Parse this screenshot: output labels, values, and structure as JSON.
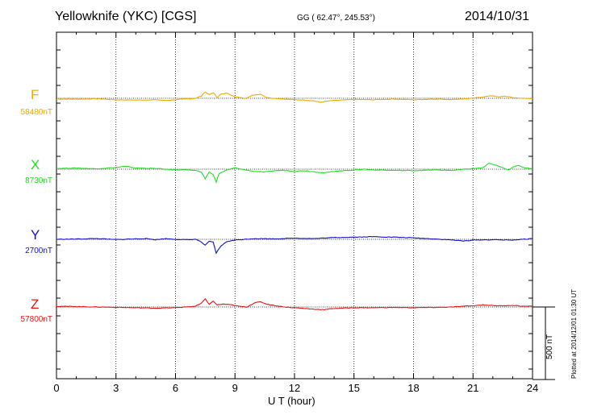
{
  "header": {
    "station": "Yellowknife (YKC)  [CGS]",
    "coords": "GG ( 62.47°, 245.53°)",
    "date": "2014/10/31"
  },
  "plotted_note": "Plotted at 2014/12/01 01:30 UT",
  "chart_data": {
    "type": "line",
    "xlabel": "U T (hour)",
    "xlim": [
      0,
      24
    ],
    "xticks": [
      "0",
      "3",
      "6",
      "9",
      "12",
      "15",
      "18",
      "21",
      "24"
    ],
    "grid": "vertical dotted every 3 hours",
    "scale_bar": {
      "label": "500 nT",
      "value_nT": 500
    },
    "series": [
      {
        "name": "F",
        "baseline_label": "58480nT",
        "color": "#f4a800",
        "points": [
          [
            0,
            -5
          ],
          [
            1,
            -6
          ],
          [
            2,
            -3
          ],
          [
            3,
            -10
          ],
          [
            4,
            -12
          ],
          [
            5,
            -10
          ],
          [
            5.5,
            -15
          ],
          [
            6,
            -10
          ],
          [
            6.5,
            -5
          ],
          [
            7,
            0
          ],
          [
            7.3,
            15
          ],
          [
            7.5,
            45
          ],
          [
            7.7,
            25
          ],
          [
            7.9,
            40
          ],
          [
            8.1,
            5
          ],
          [
            8.3,
            30
          ],
          [
            8.6,
            35
          ],
          [
            9,
            10
          ],
          [
            9.5,
            0
          ],
          [
            10,
            25
          ],
          [
            10.3,
            28
          ],
          [
            10.6,
            5
          ],
          [
            11,
            0
          ],
          [
            11.5,
            -5
          ],
          [
            12,
            -10
          ],
          [
            12.5,
            -12
          ],
          [
            13,
            -18
          ],
          [
            13.3,
            -28
          ],
          [
            13.6,
            -20
          ],
          [
            14,
            -15
          ],
          [
            15,
            -8
          ],
          [
            16,
            -10
          ],
          [
            17,
            -5
          ],
          [
            18,
            -10
          ],
          [
            19,
            -5
          ],
          [
            20,
            -8
          ],
          [
            21,
            0
          ],
          [
            21.5,
            10
          ],
          [
            22,
            18
          ],
          [
            22.3,
            8
          ],
          [
            22.6,
            15
          ],
          [
            23,
            5
          ],
          [
            23.5,
            0
          ],
          [
            24,
            -2
          ]
        ]
      },
      {
        "name": "X",
        "baseline_label": "8730nT",
        "color": "#22dd22",
        "points": [
          [
            0,
            5
          ],
          [
            1,
            8
          ],
          [
            2,
            3
          ],
          [
            3,
            12
          ],
          [
            3.5,
            20
          ],
          [
            4,
            8
          ],
          [
            5,
            5
          ],
          [
            6,
            -5
          ],
          [
            6.5,
            -3
          ],
          [
            7,
            -10
          ],
          [
            7.3,
            -20
          ],
          [
            7.5,
            -65
          ],
          [
            7.7,
            -20
          ],
          [
            7.9,
            -35
          ],
          [
            8.05,
            -90
          ],
          [
            8.2,
            -30
          ],
          [
            8.5,
            -10
          ],
          [
            9,
            10
          ],
          [
            9.5,
            -5
          ],
          [
            10,
            -15
          ],
          [
            10.5,
            -20
          ],
          [
            11,
            -10
          ],
          [
            11.5,
            -8
          ],
          [
            12,
            -15
          ],
          [
            12.5,
            -10
          ],
          [
            13,
            -18
          ],
          [
            13.5,
            -25
          ],
          [
            14,
            -15
          ],
          [
            15,
            -5
          ],
          [
            15.5,
            0
          ],
          [
            16,
            -5
          ],
          [
            17,
            -8
          ],
          [
            18,
            -10
          ],
          [
            19,
            -5
          ],
          [
            20,
            -8
          ],
          [
            21,
            5
          ],
          [
            21.5,
            10
          ],
          [
            21.8,
            40
          ],
          [
            22.2,
            25
          ],
          [
            22.5,
            10
          ],
          [
            22.8,
            -5
          ],
          [
            23,
            15
          ],
          [
            23.3,
            25
          ],
          [
            23.6,
            10
          ],
          [
            24,
            5
          ]
        ]
      },
      {
        "name": "Y",
        "baseline_label": "2700nT",
        "color": "#1010cc",
        "points": [
          [
            0,
            0
          ],
          [
            1,
            2
          ],
          [
            2,
            5
          ],
          [
            3,
            -2
          ],
          [
            4,
            3
          ],
          [
            4.5,
            5
          ],
          [
            5,
            -3
          ],
          [
            5.5,
            5
          ],
          [
            6,
            0
          ],
          [
            6.5,
            -3
          ],
          [
            7,
            0
          ],
          [
            7.2,
            -10
          ],
          [
            7.5,
            -40
          ],
          [
            7.7,
            -15
          ],
          [
            7.9,
            -20
          ],
          [
            8.05,
            -95
          ],
          [
            8.3,
            -45
          ],
          [
            8.6,
            -15
          ],
          [
            9,
            -5
          ],
          [
            10,
            5
          ],
          [
            11,
            3
          ],
          [
            12,
            8
          ],
          [
            13,
            5
          ],
          [
            14,
            12
          ],
          [
            15,
            15
          ],
          [
            16,
            18
          ],
          [
            17,
            15
          ],
          [
            18,
            10
          ],
          [
            19,
            3
          ],
          [
            20,
            -5
          ],
          [
            20.5,
            -12
          ],
          [
            21,
            -5
          ],
          [
            22,
            -3
          ],
          [
            23,
            -5
          ],
          [
            24,
            5
          ]
        ]
      },
      {
        "name": "Z",
        "baseline_label": "57800nT",
        "color": "#ee1111",
        "points": [
          [
            0,
            5
          ],
          [
            1,
            3
          ],
          [
            2,
            0
          ],
          [
            3,
            -2
          ],
          [
            4,
            -5
          ],
          [
            5,
            -8
          ],
          [
            6,
            -5
          ],
          [
            7,
            5
          ],
          [
            7.3,
            25
          ],
          [
            7.5,
            55
          ],
          [
            7.7,
            20
          ],
          [
            7.9,
            40
          ],
          [
            8.1,
            15
          ],
          [
            8.4,
            20
          ],
          [
            8.8,
            15
          ],
          [
            9.2,
            5
          ],
          [
            9.6,
            0
          ],
          [
            10,
            30
          ],
          [
            10.3,
            35
          ],
          [
            10.6,
            20
          ],
          [
            11,
            10
          ],
          [
            11.5,
            0
          ],
          [
            12,
            -5
          ],
          [
            12.5,
            -10
          ],
          [
            13,
            -15
          ],
          [
            13.5,
            -18
          ],
          [
            14,
            -10
          ],
          [
            15,
            -5
          ],
          [
            16,
            -5
          ],
          [
            17,
            -3
          ],
          [
            18,
            -5
          ],
          [
            19,
            -3
          ],
          [
            20,
            0
          ],
          [
            20.5,
            5
          ],
          [
            21,
            8
          ],
          [
            21.5,
            15
          ],
          [
            22,
            10
          ],
          [
            22.5,
            8
          ],
          [
            23,
            12
          ],
          [
            23.5,
            5
          ],
          [
            24,
            5
          ]
        ]
      }
    ]
  }
}
